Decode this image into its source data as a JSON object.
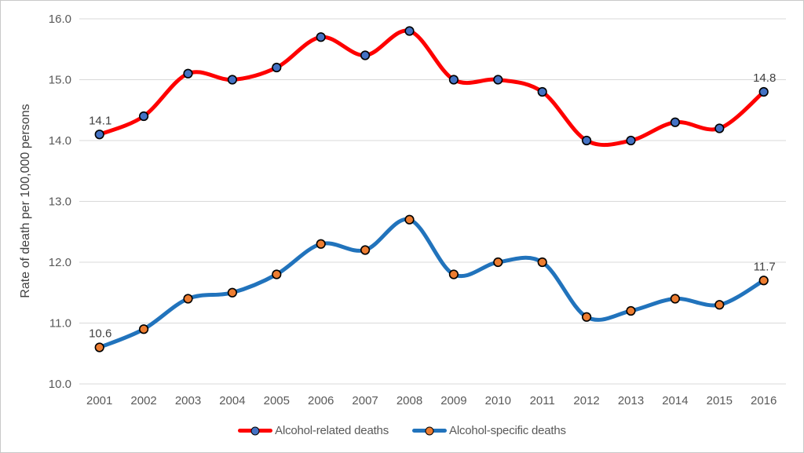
{
  "chart_data": {
    "type": "line",
    "smoothed": true,
    "x": [
      "2001",
      "2002",
      "2003",
      "2004",
      "2005",
      "2006",
      "2007",
      "2008",
      "2009",
      "2010",
      "2011",
      "2012",
      "2013",
      "2014",
      "2015",
      "2016"
    ],
    "series": [
      {
        "name": "Alcohol-related deaths",
        "line_color": "#fe0000",
        "marker_fill": "#4472c4",
        "marker_stroke": "#000000",
        "values": [
          14.1,
          14.4,
          15.1,
          15.0,
          15.2,
          15.7,
          15.4,
          15.8,
          15.0,
          15.0,
          14.8,
          14.0,
          14.0,
          14.3,
          14.2,
          14.8
        ]
      },
      {
        "name": "Alcohol-specific deaths",
        "line_color": "#2173bc",
        "marker_fill": "#ed7d31",
        "marker_stroke": "#000000",
        "values": [
          10.6,
          10.9,
          11.4,
          11.5,
          11.8,
          12.3,
          12.2,
          12.7,
          11.8,
          12.0,
          12.0,
          11.1,
          11.2,
          11.4,
          11.3,
          11.7
        ]
      }
    ],
    "title": "",
    "xlabel": "",
    "ylabel": "Rate of death per 100,000 persons",
    "ylim": [
      10.0,
      16.0
    ],
    "yticks": [
      {
        "value": 10.0,
        "label": "10.0"
      },
      {
        "value": 11.0,
        "label": "11.0"
      },
      {
        "value": 12.0,
        "label": "12.0"
      },
      {
        "value": 13.0,
        "label": "13.0"
      },
      {
        "value": 14.0,
        "label": "14.0"
      },
      {
        "value": 15.0,
        "label": "15.0"
      },
      {
        "value": 16.0,
        "label": "16.0"
      }
    ],
    "grid": true,
    "legend_position": "bottom",
    "annotations": [
      {
        "series": 0,
        "index": 0,
        "text": "14.1"
      },
      {
        "series": 0,
        "index": 15,
        "text": "14.8"
      },
      {
        "series": 1,
        "index": 0,
        "text": "10.6"
      },
      {
        "series": 1,
        "index": 15,
        "text": "11.7"
      }
    ]
  },
  "colors": {
    "gridline": "#d9d9d9",
    "tick_text": "#595959",
    "annotation_text": "#404040",
    "axis_title_text": "#404040",
    "frame_border": "#c9c9c9",
    "background": "#ffffff"
  }
}
